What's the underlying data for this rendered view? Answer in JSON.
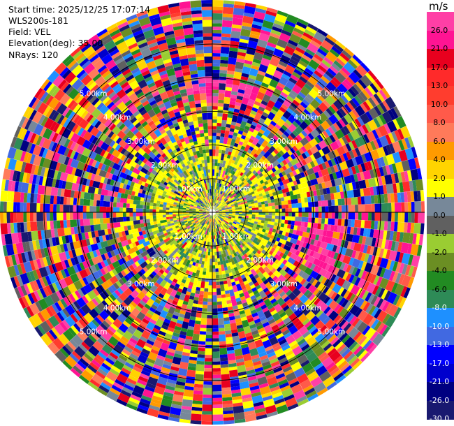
{
  "header": {
    "start_time": "Start time: 2025/12/25 17:07:14",
    "station": "WLS200s-181",
    "field": "Field: VEL",
    "elevation": "Elevation(deg): 35.00",
    "nrays": "NRays: 120"
  },
  "colorbar": {
    "unit": "m/s",
    "labels": [
      "26.0",
      "21.0",
      "17.0",
      "13.0",
      "10.0",
      "8.0",
      "6.0",
      "4.0",
      "2.0",
      "1.0",
      "0.0",
      "-1.0",
      "-2.0",
      "-4.0",
      "-6.0",
      "-8.0",
      "-10.0",
      "-13.0",
      "-17.0",
      "-21.0",
      "-26.0",
      "-30.0"
    ],
    "colors": [
      "#ff3fa6",
      "#ff1493",
      "#e8001e",
      "#ff2a2a",
      "#ff3d2e",
      "#ff5a4a",
      "#ff7a5a",
      "#ff9a00",
      "#ffd400",
      "#ffff00",
      "#778899",
      "#606060",
      "#9acd32",
      "#6b8e23",
      "#228b22",
      "#2e8b57",
      "#1e90ff",
      "#4169e1",
      "#0000ff",
      "#0000cd",
      "#000080",
      "#191970"
    ]
  },
  "chart_data": {
    "type": "heatmap",
    "title": "",
    "subtitle": "",
    "field": "VEL",
    "unit": "m/s",
    "elevation_deg": 35.0,
    "n_rays": 120,
    "range_rings_km": [
      1.0,
      2.0,
      3.0,
      4.0,
      5.0
    ],
    "range_ring_labels": [
      "1.00km",
      "2.00km",
      "3.00km",
      "4.00km",
      "5.00km"
    ],
    "colorbar_ticks": [
      26.0,
      21.0,
      17.0,
      13.0,
      10.0,
      8.0,
      6.0,
      4.0,
      2.0,
      1.0,
      0.0,
      -1.0,
      -2.0,
      -4.0,
      -6.0,
      -8.0,
      -10.0,
      -13.0,
      -17.0,
      -21.0,
      -26.0,
      -30.0
    ],
    "value_range": [
      -30.0,
      26.0
    ]
  }
}
